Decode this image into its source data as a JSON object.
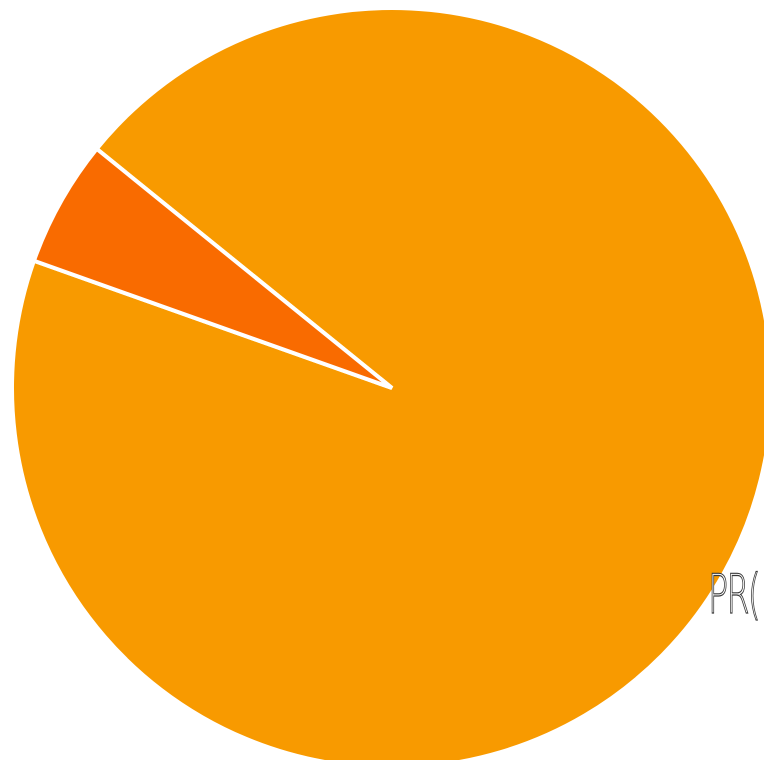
{
  "chart_data": {
    "type": "pie",
    "slices": [
      {
        "label": "",
        "value": 94.6,
        "color": "#F89A00"
      },
      {
        "label": "",
        "value": 5.4,
        "color": "#F96B00"
      }
    ],
    "annotations": [
      "PR("
    ]
  },
  "label_text": "PR("
}
